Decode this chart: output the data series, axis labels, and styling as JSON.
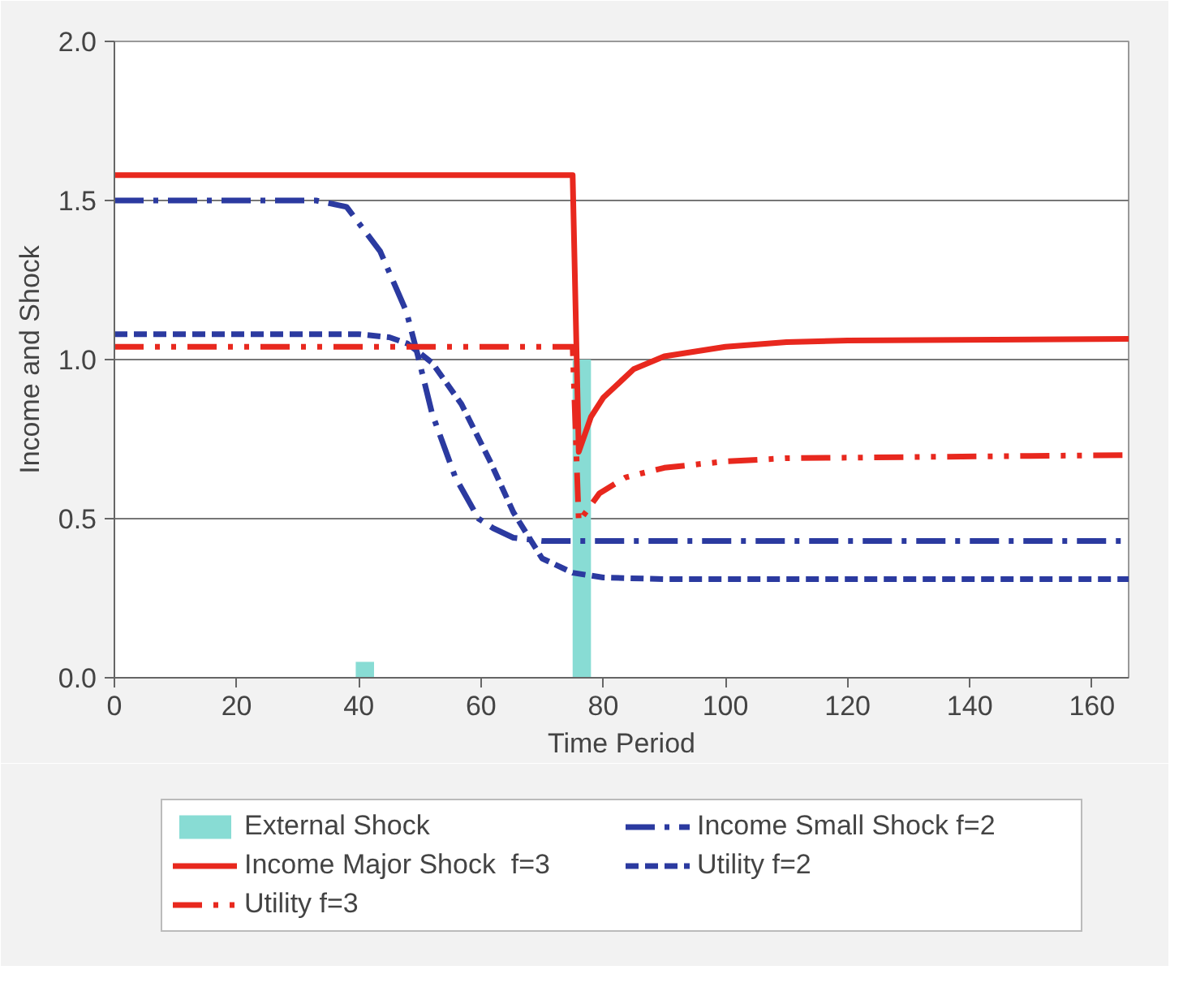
{
  "chart_data": {
    "type": "line",
    "xlabel": "Time Period",
    "ylabel": "Income and Shock",
    "xlim": [
      0,
      166
    ],
    "xticks": [
      0,
      20,
      40,
      60,
      80,
      100,
      120,
      140,
      160
    ],
    "ylim": [
      0,
      2
    ],
    "yticks": [
      {
        "value": 0,
        "label": "0.0"
      },
      {
        "value": 0.5,
        "label": "0.5"
      },
      {
        "value": 1,
        "label": "1.0"
      },
      {
        "value": 1.5,
        "label": "1.5"
      },
      {
        "value": 2,
        "label": "2.0"
      }
    ],
    "grid": "y",
    "legend": "bottom",
    "series": [
      {
        "name": "External Shock",
        "type": "bar",
        "color": "#88dcd4",
        "x": [
          41,
          76.5
        ],
        "values": [
          0.05,
          1.0
        ]
      },
      {
        "name": "Income Small Shock f=2",
        "color": "#2b3aa0",
        "line_style": "dashdot",
        "x": [
          0,
          20,
          33,
          38,
          43.5,
          47.8,
          49.7,
          52,
          55.8,
          59.6,
          62,
          65.3,
          70,
          80,
          166
        ],
        "values": [
          1.5,
          1.5,
          1.5,
          1.48,
          1.34,
          1.15,
          1.01,
          0.83,
          0.63,
          0.5,
          0.47,
          0.44,
          0.43,
          0.43,
          0.43
        ]
      },
      {
        "name": "Income Major Shock  f=3",
        "color": "#e8281e",
        "line_style": "solid",
        "x": [
          0,
          75,
          76,
          78,
          80,
          85,
          90,
          100,
          110,
          120,
          166
        ],
        "values": [
          1.58,
          1.58,
          0.71,
          0.82,
          0.88,
          0.97,
          1.01,
          1.04,
          1.055,
          1.06,
          1.065
        ]
      },
      {
        "name": "Utility f=2",
        "color": "#2b3aa0",
        "line_style": "dashed",
        "x": [
          0,
          40,
          45,
          48,
          52,
          56.8,
          61.5,
          65.3,
          70,
          75,
          80,
          90,
          166
        ],
        "values": [
          1.08,
          1.08,
          1.07,
          1.05,
          0.99,
          0.86,
          0.68,
          0.52,
          0.375,
          0.33,
          0.315,
          0.31,
          0.31
        ]
      },
      {
        "name": "Utility f=3",
        "color": "#e8281e",
        "line_style": "dashdotdot",
        "x": [
          0,
          75,
          76,
          79.4,
          83.7,
          90,
          100,
          110,
          166
        ],
        "values": [
          1.04,
          1.04,
          0.49,
          0.58,
          0.63,
          0.66,
          0.68,
          0.69,
          0.7
        ]
      }
    ]
  }
}
